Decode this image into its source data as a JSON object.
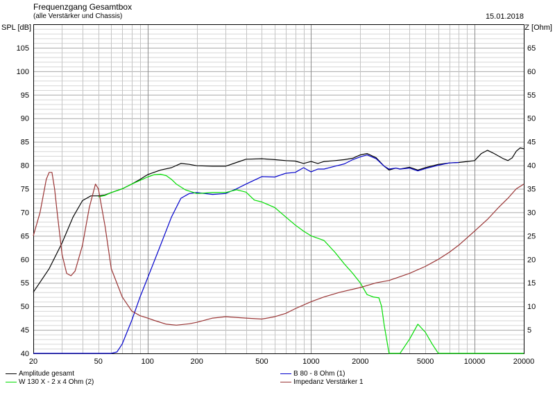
{
  "header": {
    "title": "Frequenzgang Gesamtbox",
    "subtitle": "(alle Verstärker und Chassis)",
    "date": "15.01.2018",
    "ylabel_left": "SPL [dB]",
    "ylabel_right": "Z [Ohm]"
  },
  "chart_data": {
    "type": "line",
    "x_scale": "log",
    "xlim": [
      20,
      20000
    ],
    "ylim_left": [
      40,
      110
    ],
    "ylim_right": [
      0,
      70
    ],
    "ylabel": "SPL [dB]",
    "ylabel_right": "Z [Ohm]",
    "grid": true,
    "x_ticks": [
      20,
      50,
      100,
      200,
      500,
      1000,
      2000,
      5000,
      10000,
      20000
    ],
    "x_tick_labels": [
      "20",
      "50",
      "100",
      "200",
      "500",
      "1000",
      "2000",
      "5000",
      "10000",
      "20000"
    ],
    "y_ticks_left": [
      40,
      45,
      50,
      55,
      60,
      65,
      70,
      75,
      80,
      85,
      90,
      95,
      100,
      105
    ],
    "y_ticks_right": [
      5,
      10,
      15,
      20,
      25,
      30,
      35,
      40,
      45,
      50,
      55,
      60,
      65
    ],
    "legend_position": "bottom",
    "series": [
      {
        "name": "Amplitude gesamt",
        "color": "#000000",
        "axis": "left",
        "points": [
          [
            20,
            53
          ],
          [
            25,
            58
          ],
          [
            30,
            63.5
          ],
          [
            35,
            69
          ],
          [
            40,
            72.5
          ],
          [
            45,
            73.5
          ],
          [
            50,
            73.5
          ],
          [
            55,
            73.7
          ],
          [
            60,
            74.2
          ],
          [
            70,
            75
          ],
          [
            80,
            76
          ],
          [
            90,
            77
          ],
          [
            100,
            78
          ],
          [
            120,
            79
          ],
          [
            140,
            79.5
          ],
          [
            160,
            80.4
          ],
          [
            180,
            80.2
          ],
          [
            200,
            79.9
          ],
          [
            250,
            79.8
          ],
          [
            300,
            79.8
          ],
          [
            350,
            80.6
          ],
          [
            400,
            81.3
          ],
          [
            500,
            81.4
          ],
          [
            600,
            81.2
          ],
          [
            700,
            81
          ],
          [
            800,
            80.9
          ],
          [
            900,
            80.4
          ],
          [
            1000,
            80.8
          ],
          [
            1100,
            80.4
          ],
          [
            1200,
            80.8
          ],
          [
            1400,
            81
          ],
          [
            1600,
            81.2
          ],
          [
            1800,
            81.5
          ],
          [
            2000,
            82.2
          ],
          [
            2200,
            82.5
          ],
          [
            2500,
            81.6
          ],
          [
            2800,
            79.8
          ],
          [
            3000,
            79
          ],
          [
            3300,
            79.4
          ],
          [
            3500,
            79.2
          ],
          [
            4000,
            79.6
          ],
          [
            4500,
            79
          ],
          [
            5000,
            79.5
          ],
          [
            6000,
            80.2
          ],
          [
            7000,
            80.5
          ],
          [
            8000,
            80.6
          ],
          [
            9000,
            80.8
          ],
          [
            10000,
            81
          ],
          [
            11000,
            82.5
          ],
          [
            12000,
            83.2
          ],
          [
            13000,
            82.6
          ],
          [
            15000,
            81.4
          ],
          [
            16000,
            81
          ],
          [
            17000,
            81.6
          ],
          [
            18000,
            83
          ],
          [
            19000,
            83.7
          ],
          [
            20000,
            83.5
          ]
        ]
      },
      {
        "name": "B 80 - 8 Ohm (1)",
        "color": "#0000cc",
        "axis": "left",
        "points": [
          [
            20,
            40
          ],
          [
            60,
            40
          ],
          [
            65,
            40.3
          ],
          [
            70,
            42
          ],
          [
            80,
            47
          ],
          [
            90,
            52
          ],
          [
            100,
            56
          ],
          [
            120,
            63
          ],
          [
            140,
            69
          ],
          [
            160,
            73
          ],
          [
            180,
            74
          ],
          [
            200,
            74.2
          ],
          [
            250,
            73.8
          ],
          [
            300,
            74
          ],
          [
            350,
            75
          ],
          [
            400,
            76
          ],
          [
            500,
            77.6
          ],
          [
            600,
            77.5
          ],
          [
            700,
            78.3
          ],
          [
            800,
            78.5
          ],
          [
            900,
            79.5
          ],
          [
            1000,
            78.6
          ],
          [
            1100,
            79.2
          ],
          [
            1200,
            79.2
          ],
          [
            1400,
            79.8
          ],
          [
            1600,
            80.3
          ],
          [
            1800,
            81.2
          ],
          [
            2000,
            81.8
          ],
          [
            2200,
            82.2
          ],
          [
            2500,
            81.4
          ],
          [
            2800,
            79.8
          ],
          [
            3000,
            79.2
          ],
          [
            3300,
            79.4
          ],
          [
            3500,
            79.2
          ],
          [
            4000,
            79.4
          ],
          [
            4500,
            78.8
          ],
          [
            5000,
            79.3
          ],
          [
            6000,
            80
          ],
          [
            7000,
            80.5
          ],
          [
            8000,
            80.6
          ]
        ]
      },
      {
        "name": "W 130 X - 2 x 4 Ohm (2)",
        "color": "#00dd00",
        "axis": "left",
        "points": [
          [
            50,
            73.3
          ],
          [
            55,
            73.6
          ],
          [
            60,
            74.2
          ],
          [
            70,
            75
          ],
          [
            80,
            76
          ],
          [
            90,
            76.8
          ],
          [
            100,
            77.5
          ],
          [
            110,
            78
          ],
          [
            120,
            78.1
          ],
          [
            130,
            77.8
          ],
          [
            140,
            77
          ],
          [
            150,
            76
          ],
          [
            170,
            74.8
          ],
          [
            200,
            74
          ],
          [
            250,
            74.2
          ],
          [
            300,
            74.2
          ],
          [
            350,
            74.8
          ],
          [
            400,
            74.3
          ],
          [
            450,
            72.6
          ],
          [
            500,
            72.2
          ],
          [
            600,
            71
          ],
          [
            700,
            69
          ],
          [
            800,
            67.3
          ],
          [
            900,
            66
          ],
          [
            1000,
            65
          ],
          [
            1200,
            64
          ],
          [
            1400,
            61.5
          ],
          [
            1600,
            59
          ],
          [
            1800,
            57
          ],
          [
            2000,
            55
          ],
          [
            2200,
            52.5
          ],
          [
            2400,
            52
          ],
          [
            2600,
            51.8
          ],
          [
            2700,
            50
          ],
          [
            2800,
            46
          ],
          [
            3000,
            40
          ],
          [
            3500,
            40
          ],
          [
            4000,
            43
          ],
          [
            4500,
            46.2
          ],
          [
            5000,
            44.5
          ],
          [
            5500,
            42
          ],
          [
            6000,
            40
          ],
          [
            20000,
            40
          ]
        ]
      },
      {
        "name": "Impedanz Verstärker 1",
        "color": "#993333",
        "axis": "right",
        "points": [
          [
            20,
            25
          ],
          [
            22,
            30
          ],
          [
            24,
            37
          ],
          [
            25,
            38.5
          ],
          [
            26,
            38.5
          ],
          [
            27,
            35
          ],
          [
            28,
            30
          ],
          [
            30,
            21
          ],
          [
            32,
            17
          ],
          [
            34,
            16.5
          ],
          [
            36,
            17.5
          ],
          [
            40,
            23
          ],
          [
            44,
            31
          ],
          [
            48,
            36
          ],
          [
            50,
            35
          ],
          [
            55,
            27
          ],
          [
            60,
            18
          ],
          [
            70,
            12
          ],
          [
            80,
            9
          ],
          [
            90,
            8
          ],
          [
            100,
            7.5
          ],
          [
            110,
            7
          ],
          [
            130,
            6.2
          ],
          [
            150,
            6
          ],
          [
            180,
            6.3
          ],
          [
            200,
            6.6
          ],
          [
            250,
            7.5
          ],
          [
            300,
            7.8
          ],
          [
            400,
            7.5
          ],
          [
            500,
            7.3
          ],
          [
            600,
            7.8
          ],
          [
            700,
            8.5
          ],
          [
            800,
            9.5
          ],
          [
            1000,
            11
          ],
          [
            1200,
            12
          ],
          [
            1500,
            13
          ],
          [
            2000,
            14
          ],
          [
            2500,
            15
          ],
          [
            3000,
            15.5
          ],
          [
            4000,
            17
          ],
          [
            5000,
            18.5
          ],
          [
            6000,
            20
          ],
          [
            7000,
            21.5
          ],
          [
            8000,
            23
          ],
          [
            10000,
            26
          ],
          [
            12000,
            28.5
          ],
          [
            14000,
            31
          ],
          [
            16000,
            33
          ],
          [
            18000,
            35
          ],
          [
            20000,
            36
          ]
        ]
      }
    ]
  }
}
